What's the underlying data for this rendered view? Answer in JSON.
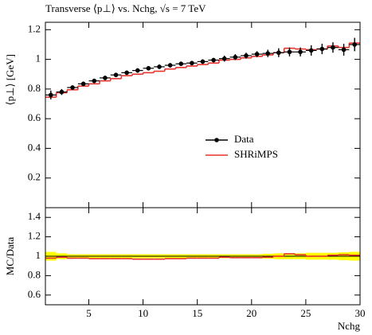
{
  "chart_data": {
    "type": "histogram",
    "title": "Transverse ⟨p⊥⟩ vs. Nchg, √s = 7 TeV",
    "ylabel": "⟨p⊥⟩ [GeV]",
    "xlabel": "Nchg",
    "bins": [
      1,
      2,
      3,
      4,
      5,
      6,
      7,
      8,
      9,
      10,
      11,
      12,
      13,
      14,
      15,
      16,
      17,
      18,
      19,
      20,
      21,
      22,
      23,
      24,
      25,
      26,
      27,
      28,
      29,
      30
    ],
    "xlim": [
      1,
      30
    ],
    "xticks": [
      5,
      10,
      15,
      20,
      25,
      30
    ],
    "ylim": [
      0,
      1.25
    ],
    "yticks": [
      0.2,
      0.4,
      0.6,
      0.8,
      1,
      1.2
    ],
    "legend": "center-right",
    "series": [
      {
        "name": "Data",
        "color": "#000000",
        "values": [
          0.76,
          0.78,
          0.81,
          0.835,
          0.855,
          0.875,
          0.895,
          0.91,
          0.925,
          0.94,
          0.95,
          0.96,
          0.97,
          0.975,
          0.985,
          0.995,
          1.005,
          1.015,
          1.025,
          1.035,
          1.04,
          1.045,
          1.05,
          1.05,
          1.06,
          1.07,
          1.08,
          1.065,
          1.1
        ],
        "errors": [
          0.03,
          0.02,
          0.015,
          0.015,
          0.015,
          0.015,
          0.015,
          0.015,
          0.015,
          0.015,
          0.015,
          0.015,
          0.015,
          0.015,
          0.015,
          0.015,
          0.02,
          0.02,
          0.02,
          0.02,
          0.025,
          0.03,
          0.03,
          0.03,
          0.035,
          0.035,
          0.035,
          0.04,
          0.045
        ]
      },
      {
        "name": "SHRiMPS",
        "color": "#e8322c",
        "values": [
          0.745,
          0.775,
          0.795,
          0.82,
          0.835,
          0.855,
          0.87,
          0.89,
          0.9,
          0.91,
          0.92,
          0.935,
          0.945,
          0.955,
          0.965,
          0.975,
          0.995,
          1.0,
          1.01,
          1.02,
          1.03,
          1.045,
          1.075,
          1.07,
          1.065,
          1.07,
          1.09,
          1.08,
          1.11
        ]
      }
    ],
    "ratio": {
      "ylabel": "MC/Data",
      "ylim": [
        0.5,
        1.5
      ],
      "yticks": [
        0.6,
        0.8,
        1,
        1.2,
        1.4
      ],
      "band_color": "#ffff00",
      "band": [
        0.045,
        0.03,
        0.02,
        0.02,
        0.02,
        0.02,
        0.02,
        0.02,
        0.02,
        0.02,
        0.02,
        0.02,
        0.02,
        0.02,
        0.02,
        0.02,
        0.02,
        0.02,
        0.02,
        0.02,
        0.025,
        0.03,
        0.03,
        0.03,
        0.035,
        0.035,
        0.035,
        0.04,
        0.045
      ],
      "values": [
        0.98,
        0.99,
        0.98,
        0.98,
        0.975,
        0.975,
        0.975,
        0.975,
        0.97,
        0.97,
        0.97,
        0.975,
        0.975,
        0.98,
        0.98,
        0.98,
        0.99,
        0.985,
        0.985,
        0.985,
        0.99,
        1.0,
        1.025,
        1.015,
        1.0,
        1.0,
        1.01,
        1.015,
        1.01
      ]
    }
  }
}
